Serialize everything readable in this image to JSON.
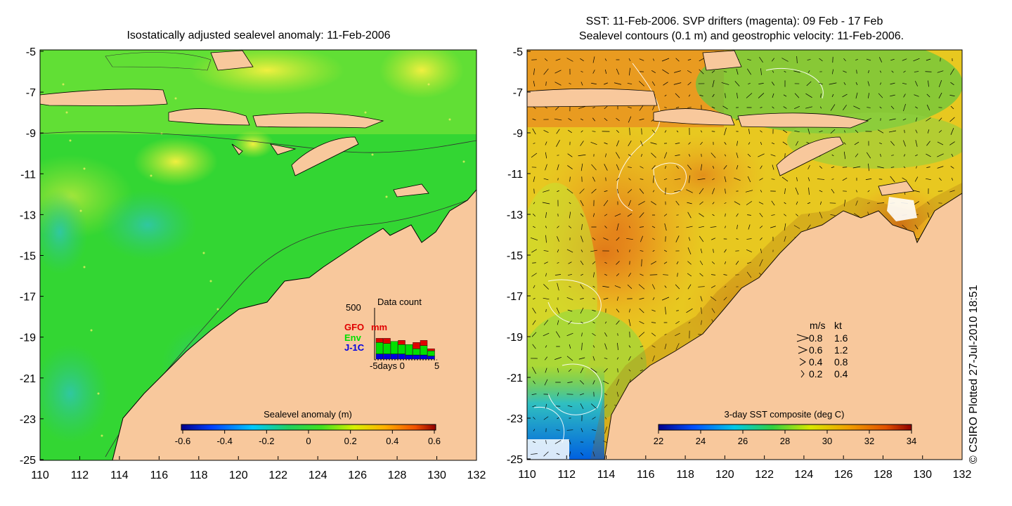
{
  "left_panel": {
    "title": "Isostatically adjusted sealevel anomaly: 11-Feb-2006",
    "y_ticks": [
      "-5",
      "-7",
      "-9",
      "-11",
      "-13",
      "-15",
      "-17",
      "-19",
      "-21",
      "-23",
      "-25"
    ],
    "x_ticks": [
      "110",
      "112",
      "114",
      "116",
      "118",
      "120",
      "122",
      "124",
      "126",
      "128",
      "130",
      "132"
    ],
    "colorbar": {
      "title": "Sealevel anomaly (m)",
      "ticks": [
        "-0.6",
        "-0.4",
        "-0.2",
        "0",
        "0.2",
        "0.4",
        "0.6"
      ]
    },
    "inset": {
      "title": "Data count",
      "ymax": "500",
      "legend": [
        {
          "label": "GFO",
          "color": "#e00000"
        },
        {
          "label": "mm",
          "color": "#e00000"
        },
        {
          "label": "Env",
          "color": "#00e000"
        },
        {
          "label": "J-1C",
          "color": "#0000e0"
        }
      ],
      "xlabel": "-5days 0",
      "xend": "5",
      "bars": [
        {
          "gfo": 40,
          "env": 110,
          "j1c": 50
        },
        {
          "gfo": 50,
          "env": 100,
          "j1c": 50
        },
        {
          "gfo": 0,
          "env": 120,
          "j1c": 50
        },
        {
          "gfo": 40,
          "env": 90,
          "j1c": 50
        },
        {
          "gfo": 0,
          "env": 100,
          "j1c": 40
        },
        {
          "gfo": 60,
          "env": 60,
          "j1c": 40
        },
        {
          "gfo": 50,
          "env": 90,
          "j1c": 40
        },
        {
          "gfo": 20,
          "env": 50,
          "j1c": 30
        }
      ]
    }
  },
  "right_panel": {
    "title_line1": "SST: 11-Feb-2006. SVP drifters (magenta): 09 Feb - 17 Feb",
    "title_line2": "Sealevel contours (0.1 m) and geostrophic velocity: 11-Feb-2006.",
    "y_ticks": [
      "-5",
      "-7",
      "-9",
      "-11",
      "-13",
      "-15",
      "-17",
      "-19",
      "-21",
      "-23",
      "-25"
    ],
    "x_ticks": [
      "110",
      "112",
      "114",
      "116",
      "118",
      "120",
      "122",
      "124",
      "126",
      "128",
      "130",
      "132"
    ],
    "colorbar": {
      "title": "3-day SST composite (deg C)",
      "ticks": [
        "22",
        "24",
        "26",
        "28",
        "30",
        "32",
        "34"
      ]
    },
    "velocity_legend": {
      "header_ms": "m/s",
      "header_kt": "kt",
      "rows": [
        {
          "ms": "0.8",
          "kt": "1.6"
        },
        {
          "ms": "0.6",
          "kt": "1.2"
        },
        {
          "ms": "0.4",
          "kt": "0.8"
        },
        {
          "ms": "0.2",
          "kt": "0.4"
        }
      ]
    }
  },
  "credit": "© CSIRO Plotted 27-Jul-2010 18:51",
  "colors": {
    "ocean_green": "#33d633",
    "land": "#f8c89c",
    "sst_orange": "#f0a020",
    "sst_yellow": "#e8e020"
  }
}
